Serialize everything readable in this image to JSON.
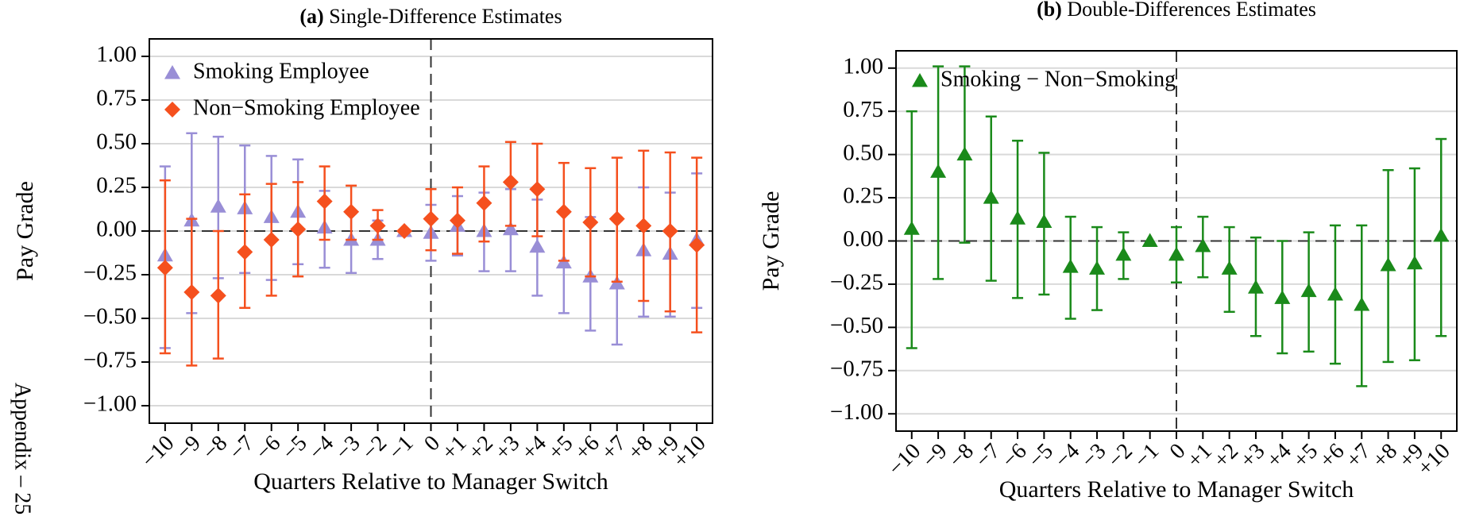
{
  "footer": "Appendix – 25",
  "chart_data": [
    {
      "type": "errorbar",
      "title_label": "(a)",
      "title": "Single-Difference Estimates",
      "x_label": "Quarters Relative to Manager Switch",
      "y_label": "Pay Grade",
      "categories": [
        "−10",
        "−9",
        "−8",
        "−7",
        "−6",
        "−5",
        "−4",
        "−3",
        "−2",
        "−1",
        "0",
        "+1",
        "+2",
        "+3",
        "+4",
        "+5",
        "+6",
        "+7",
        "+8",
        "+9",
        "+10"
      ],
      "series": [
        {
          "name": "Smoking Employee",
          "color": "#998ed6",
          "marker": "triangle",
          "values": [
            -0.14,
            0.06,
            0.14,
            0.13,
            0.08,
            0.11,
            0.02,
            -0.05,
            -0.05,
            0,
            -0.01,
            0.03,
            0.0,
            0.01,
            -0.09,
            -0.18,
            -0.26,
            -0.3,
            -0.11,
            -0.13,
            -0.05
          ],
          "lower": [
            -0.67,
            -0.47,
            -0.27,
            -0.24,
            -0.28,
            -0.19,
            -0.21,
            -0.24,
            -0.16,
            null,
            -0.17,
            -0.14,
            -0.23,
            -0.23,
            -0.37,
            -0.47,
            -0.57,
            -0.65,
            -0.49,
            -0.49,
            -0.44
          ],
          "upper": [
            0.37,
            0.56,
            0.54,
            0.49,
            0.43,
            0.41,
            0.23,
            0.1,
            0.06,
            null,
            0.15,
            0.2,
            0.22,
            0.24,
            0.18,
            0.1,
            0.08,
            0.06,
            0.25,
            0.22,
            0.33
          ]
        },
        {
          "name": "Non−Smoking Employee",
          "color": "#f5501e",
          "marker": "diamond",
          "values": [
            -0.21,
            -0.35,
            -0.37,
            -0.12,
            -0.05,
            0.01,
            0.17,
            0.11,
            0.03,
            0,
            0.07,
            0.06,
            0.16,
            0.28,
            0.24,
            0.11,
            0.05,
            0.07,
            0.03,
            0.0,
            -0.08
          ],
          "lower": [
            -0.7,
            -0.77,
            -0.73,
            -0.44,
            -0.37,
            -0.26,
            -0.05,
            -0.05,
            -0.05,
            null,
            -0.11,
            -0.13,
            -0.06,
            0.03,
            -0.03,
            -0.17,
            -0.26,
            -0.29,
            -0.4,
            -0.46,
            -0.58
          ],
          "upper": [
            0.29,
            0.07,
            0.0,
            0.21,
            0.27,
            0.28,
            0.37,
            0.26,
            0.12,
            null,
            0.24,
            0.25,
            0.37,
            0.51,
            0.5,
            0.39,
            0.36,
            0.42,
            0.46,
            0.45,
            0.42
          ]
        }
      ],
      "ylim": [
        -1.1,
        1.1
      ],
      "yticks": [
        {
          "value": 1,
          "label": "1.00"
        },
        {
          "value": 0.75,
          "label": "0.75"
        },
        {
          "value": 0.5,
          "label": "0.50"
        },
        {
          "value": 0.25,
          "label": "0.25"
        },
        {
          "value": 0,
          "label": "0.00"
        },
        {
          "value": -0.25,
          "label": "−0.25"
        },
        {
          "value": -0.5,
          "label": "−0.50"
        },
        {
          "value": -0.75,
          "label": "−0.75"
        },
        {
          "value": -1,
          "label": "−1.00"
        }
      ],
      "grid": true,
      "hline": 0,
      "vline_x": "0",
      "legend": "upper left"
    },
    {
      "type": "errorbar",
      "title_label": "(b)",
      "title": "Double-Differences Estimates",
      "x_label": "Quarters Relative to Manager Switch",
      "y_label": "Pay Grade",
      "categories": [
        "−10",
        "−9",
        "−8",
        "−7",
        "−6",
        "−5",
        "−4",
        "−3",
        "−2",
        "−1",
        "0",
        "+1",
        "+2",
        "+3",
        "+4",
        "+5",
        "+6",
        "+7",
        "+8",
        "+9",
        "+10"
      ],
      "series": [
        {
          "name": "Smoking − Non−Smoking",
          "color": "#1a8a1a",
          "marker": "triangle",
          "values": [
            0.07,
            0.4,
            0.5,
            0.25,
            0.13,
            0.11,
            -0.15,
            -0.16,
            -0.08,
            0,
            -0.08,
            -0.03,
            -0.16,
            -0.27,
            -0.33,
            -0.29,
            -0.31,
            -0.37,
            -0.14,
            -0.13,
            0.03
          ],
          "lower": [
            -0.62,
            -0.22,
            -0.01,
            -0.23,
            -0.33,
            -0.31,
            -0.45,
            -0.4,
            -0.22,
            null,
            -0.24,
            -0.21,
            -0.41,
            -0.55,
            -0.65,
            -0.64,
            -0.71,
            -0.84,
            -0.7,
            -0.69,
            -0.55
          ],
          "upper": [
            0.75,
            1.01,
            1.01,
            0.72,
            0.58,
            0.51,
            0.14,
            0.08,
            0.05,
            null,
            0.08,
            0.14,
            0.08,
            0.02,
            0.0,
            0.05,
            0.09,
            0.09,
            0.41,
            0.42,
            0.59
          ]
        }
      ],
      "ylim": [
        -1.1,
        1.1
      ],
      "yticks": [
        {
          "value": 1,
          "label": "1.00"
        },
        {
          "value": 0.75,
          "label": "0.75"
        },
        {
          "value": 0.5,
          "label": "0.50"
        },
        {
          "value": 0.25,
          "label": "0.25"
        },
        {
          "value": 0,
          "label": "0.00"
        },
        {
          "value": -0.25,
          "label": "−0.25"
        },
        {
          "value": -0.5,
          "label": "−0.50"
        },
        {
          "value": -0.75,
          "label": "−0.75"
        },
        {
          "value": -1,
          "label": "−1.00"
        }
      ],
      "grid": true,
      "hline": 0,
      "vline_x": "0",
      "legend": "upper left"
    }
  ]
}
